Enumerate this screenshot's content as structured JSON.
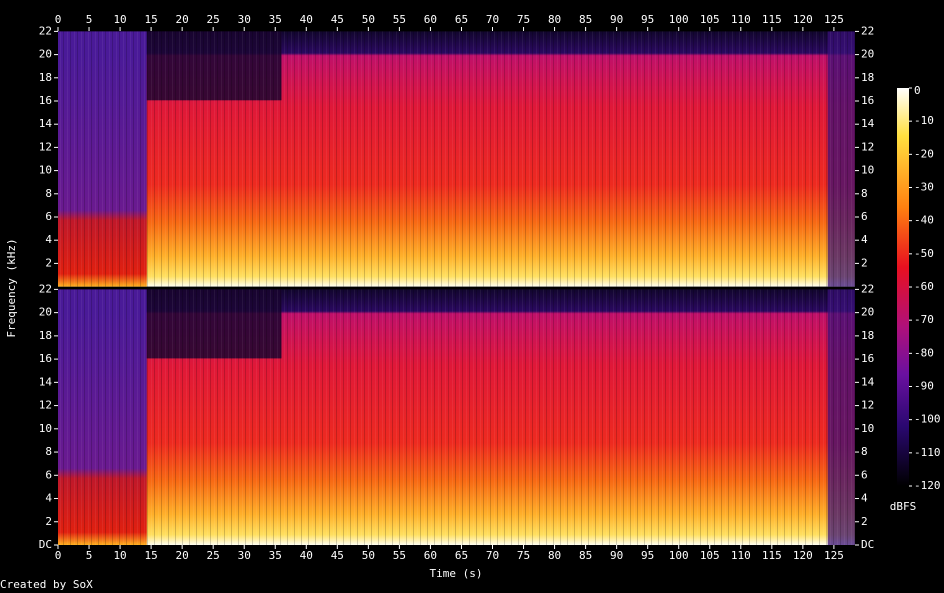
{
  "chart_data": {
    "type": "spectrogram",
    "xlabel": "Time (s)",
    "ylabel": "Frequency (kHz)",
    "xlim": [
      0,
      128.4
    ],
    "xticks": [
      0,
      5,
      10,
      15,
      20,
      25,
      30,
      35,
      40,
      45,
      50,
      55,
      60,
      65,
      70,
      75,
      80,
      85,
      90,
      95,
      100,
      105,
      110,
      115,
      120,
      125
    ],
    "channels": [
      {
        "ylim": [
          0,
          22
        ],
        "yticks": [
          2,
          4,
          6,
          8,
          10,
          12,
          14,
          16,
          18,
          20,
          22
        ]
      },
      {
        "ylim": [
          0,
          22
        ],
        "yticks": [
          {
            "value": 0,
            "label": "DC"
          },
          2,
          4,
          6,
          8,
          10,
          12,
          14,
          16,
          18,
          20,
          22
        ]
      }
    ],
    "colorbar": {
      "label": "dBFS",
      "lim": [
        -120,
        0
      ],
      "ticks": [
        0,
        -10,
        -20,
        -30,
        -40,
        -50,
        -60,
        -70,
        -80,
        -90,
        -100,
        -110,
        -120
      ]
    }
  },
  "footer": "Created by SoX"
}
